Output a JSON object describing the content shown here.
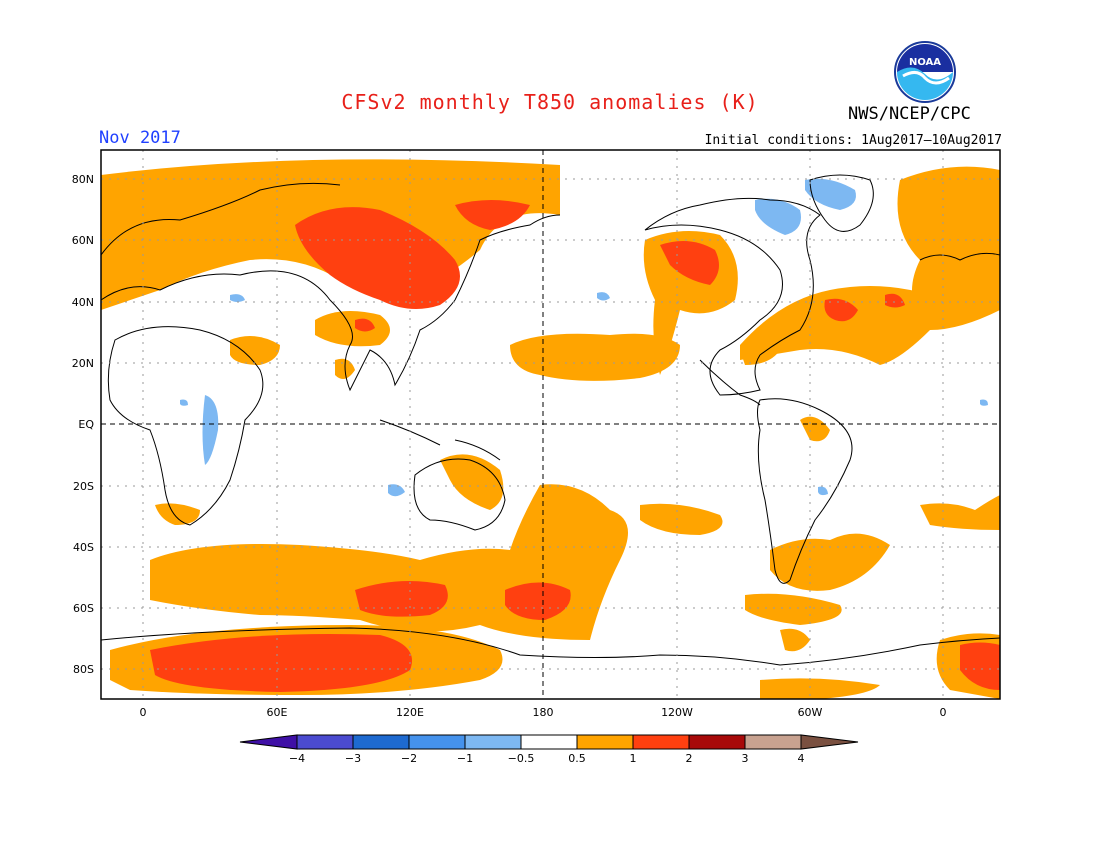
{
  "header": {
    "title": "CFSv2 monthly T850 anomalies (K)",
    "period": "Nov 2017",
    "agency": "NWS/NCEP/CPC",
    "initial_conditions": "Initial conditions: 1Aug2017–10Aug2017",
    "logo_text": "NOAA"
  },
  "map": {
    "lat_labels": [
      "80N",
      "60N",
      "40N",
      "20N",
      "EQ",
      "20S",
      "40S",
      "60S",
      "80S"
    ],
    "lon_labels": [
      "0",
      "60E",
      "120E",
      "180",
      "120W",
      "60W",
      "0"
    ]
  },
  "legend": {
    "labels": [
      "−4",
      "−3",
      "−2",
      "−1",
      "−0.5",
      "0.5",
      "1",
      "2",
      "3",
      "4"
    ],
    "colors": [
      "#3f10a6",
      "#4b4bd0",
      "#1e6ad0",
      "#4592ec",
      "#7db8f2",
      "#ffffff",
      "#ffa400",
      "#ff4010",
      "#a80a0a",
      "#c8a290",
      "#7a5040"
    ]
  },
  "colors": {
    "anom_0_5_1": "#ffa400",
    "anom_1_2": "#ff4010",
    "anom_neg": "#7db8f2",
    "coast": "#000000",
    "grid": "#9a9a9a"
  }
}
